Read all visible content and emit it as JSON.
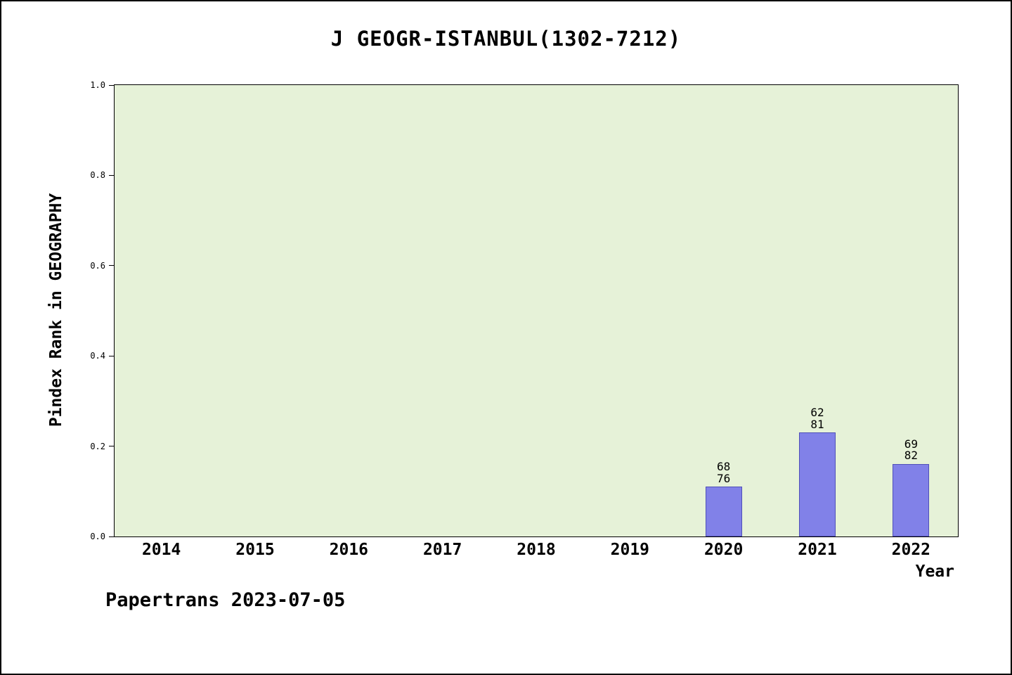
{
  "title": "J GEOGR-ISTANBUL(1302-7212)",
  "footer": "Papertrans 2023-07-05",
  "chart_data": {
    "type": "bar",
    "title": "J GEOGR-ISTANBUL(1302-7212)",
    "xlabel": "Year",
    "ylabel": "Pindex Rank in GEOGRAPHY",
    "ylim": [
      0.0,
      1.0
    ],
    "yticks": [
      0.0,
      0.2,
      0.4,
      0.6,
      0.8,
      1.0
    ],
    "grid": false,
    "legend": "none",
    "categories": [
      "2014",
      "2015",
      "2016",
      "2017",
      "2018",
      "2019",
      "2020",
      "2021",
      "2022"
    ],
    "values": [
      null,
      null,
      null,
      null,
      null,
      null,
      0.11,
      0.23,
      0.16
    ],
    "bar_labels": [
      null,
      null,
      null,
      null,
      null,
      null,
      [
        "68",
        "76"
      ],
      [
        "62",
        "81"
      ],
      [
        "69",
        "82"
      ]
    ],
    "colors": {
      "bar": "#8181e8",
      "plot_background": "#e6f2d8",
      "text": "#000000"
    }
  }
}
